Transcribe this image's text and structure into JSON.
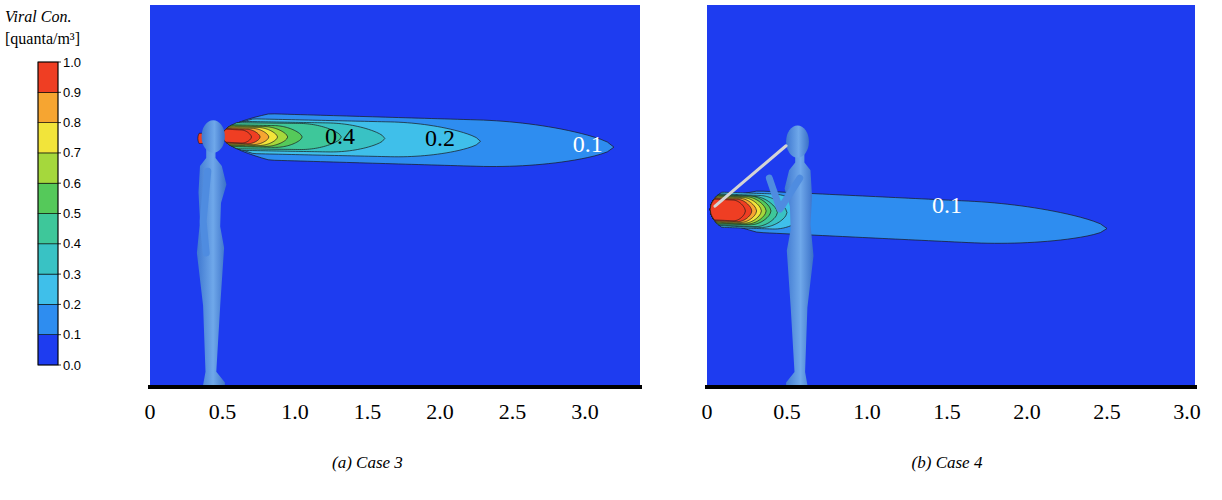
{
  "chart_data": [
    {
      "type": "contour",
      "subtitle": "(a) Case 3",
      "xlim": [
        0,
        3.38
      ],
      "xticks": [
        0,
        0.5,
        {
          "value": 1,
          "label": "1.0"
        },
        1.5,
        {
          "value": 2,
          "label": "2.0"
        },
        2.5,
        {
          "value": 3,
          "label": "3.0"
        }
      ],
      "ylim": [
        0,
        2.62
      ],
      "tick_labels": "x",
      "colorbar": {
        "title": "Viral Con.",
        "unit": "[quanta/m³]",
        "range": [
          0,
          1
        ],
        "ticks": [
          {
            "value": 0,
            "label": "0.0"
          },
          0.1,
          0.2,
          0.3,
          0.4,
          0.5,
          0.6,
          0.7,
          0.8,
          0.9,
          {
            "value": 1,
            "label": "1.0"
          }
        ],
        "colors": [
          "#1e3cf0",
          "#2e8df0",
          "#3fbfea",
          "#39c2c4",
          "#3ec79a",
          "#55c95a",
          "#a5d83c",
          "#f2e43a",
          "#f6a531",
          "#ef3e23"
        ]
      },
      "contours": [
        {
          "level": 0.1,
          "color": "#2e8df0",
          "x0": 0.5,
          "x1": 3.2,
          "y0": 1.72,
          "y1": 1.64,
          "half": 0.16
        },
        {
          "level": 0.2,
          "color": "#3fbfea",
          "x0": 0.5,
          "x1": 2.28,
          "y0": 1.72,
          "y1": 1.68,
          "half": 0.12
        },
        {
          "level": 0.3,
          "color": "#39c2c4",
          "x0": 0.5,
          "x1": 1.62,
          "y0": 1.72,
          "y1": 1.7,
          "half": 0.1
        },
        {
          "level": 0.4,
          "color": "#3ec79a",
          "x0": 0.5,
          "x1": 1.32,
          "y0": 1.72,
          "y1": 1.71,
          "half": 0.09
        },
        {
          "level": 0.5,
          "color": "#55c95a",
          "x0": 0.5,
          "x1": 1.05,
          "y0": 1.72,
          "y1": 1.71,
          "half": 0.075
        },
        {
          "level": 0.6,
          "color": "#a5d83c",
          "x0": 0.5,
          "x1": 0.95,
          "y0": 1.72,
          "y1": 1.71,
          "half": 0.068
        },
        {
          "level": 0.7,
          "color": "#f2e43a",
          "x0": 0.5,
          "x1": 0.88,
          "y0": 1.72,
          "y1": 1.71,
          "half": 0.062
        },
        {
          "level": 0.8,
          "color": "#f6a531",
          "x0": 0.5,
          "x1": 0.82,
          "y0": 1.72,
          "y1": 1.71,
          "half": 0.056
        },
        {
          "level": 0.9,
          "color": "#ef3e23",
          "x0": 0.5,
          "x1": 0.76,
          "y0": 1.72,
          "y1": 1.71,
          "half": 0.05
        },
        {
          "level": 1.0,
          "color": "#ef3e23",
          "x0": 0.5,
          "x1": 0.7,
          "y0": 1.72,
          "y1": 1.71,
          "half": 0.045
        },
        {
          "level": 1.0,
          "color": "#ef3e23",
          "x0": 0.33,
          "x1": 0.4,
          "y0": 1.7,
          "y1": 1.7,
          "half": 0.035
        }
      ],
      "annotations": [
        {
          "text": "0.4",
          "x": 1.31,
          "y": 1.72,
          "color": "#000000"
        },
        {
          "text": "0.2",
          "x": 2.0,
          "y": 1.7,
          "color": "#000000"
        },
        {
          "text": "0.1",
          "x": 3.02,
          "y": 1.66,
          "color": "#ffffff"
        }
      ]
    },
    {
      "type": "contour",
      "subtitle": "(b) Case 4",
      "xlim": [
        0,
        3.05
      ],
      "xticks": [
        0,
        0.5,
        {
          "value": 1,
          "label": "1.0"
        },
        1.5,
        {
          "value": 2,
          "label": "2.0"
        },
        2.5,
        {
          "value": 3,
          "label": "3.0"
        }
      ],
      "ylim": [
        0,
        2.38
      ],
      "tick_labels": "x",
      "contours": [
        {
          "level": 0.1,
          "color": "#2e8df0",
          "x0": 0.02,
          "x1": 2.5,
          "y0": 1.1,
          "y1": 0.98,
          "half": 0.13
        },
        {
          "level": 0.2,
          "color": "#3fbfea",
          "x0": 0.02,
          "x1": 0.62,
          "y0": 1.1,
          "y1": 1.08,
          "half": 0.11
        },
        {
          "level": 0.3,
          "color": "#39c2c4",
          "x0": 0.02,
          "x1": 0.5,
          "y0": 1.1,
          "y1": 1.08,
          "half": 0.1
        },
        {
          "level": 0.4,
          "color": "#3ec79a",
          "x0": 0.02,
          "x1": 0.44,
          "y0": 1.1,
          "y1": 1.08,
          "half": 0.095
        },
        {
          "level": 0.5,
          "color": "#55c95a",
          "x0": 0.02,
          "x1": 0.4,
          "y0": 1.1,
          "y1": 1.09,
          "half": 0.09
        },
        {
          "level": 0.6,
          "color": "#a5d83c",
          "x0": 0.02,
          "x1": 0.37,
          "y0": 1.1,
          "y1": 1.09,
          "half": 0.085
        },
        {
          "level": 0.7,
          "color": "#f2e43a",
          "x0": 0.02,
          "x1": 0.34,
          "y0": 1.1,
          "y1": 1.09,
          "half": 0.08
        },
        {
          "level": 0.8,
          "color": "#f6a531",
          "x0": 0.02,
          "x1": 0.31,
          "y0": 1.1,
          "y1": 1.09,
          "half": 0.075
        },
        {
          "level": 0.9,
          "color": "#ef3e23",
          "x0": 0.02,
          "x1": 0.28,
          "y0": 1.1,
          "y1": 1.09,
          "half": 0.07
        },
        {
          "level": 1.0,
          "color": "#ef3e23",
          "x0": 0.02,
          "x1": 0.24,
          "y0": 1.1,
          "y1": 1.09,
          "half": 0.065
        }
      ],
      "annotations": [
        {
          "text": "0.1",
          "x": 1.5,
          "y": 1.13,
          "color": "#ffffff"
        }
      ]
    }
  ]
}
